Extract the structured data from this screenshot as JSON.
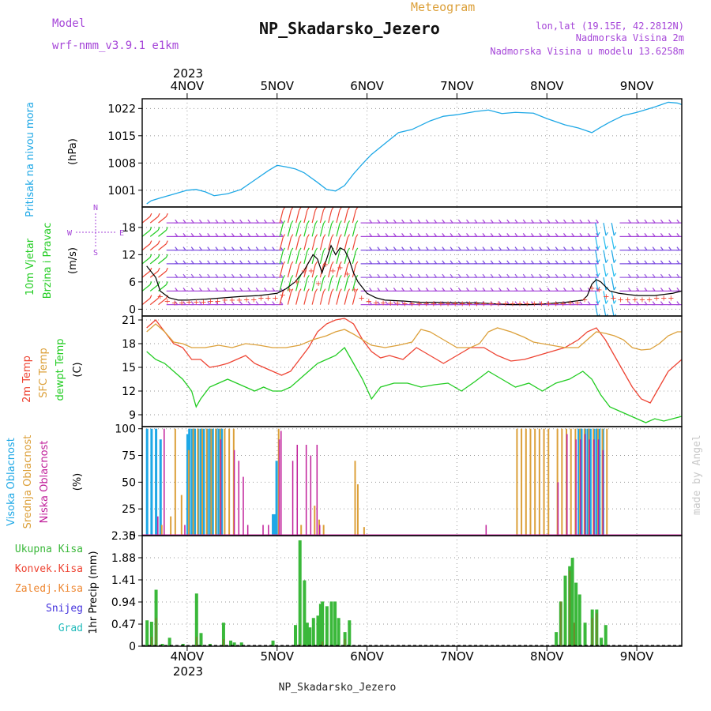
{
  "header": {
    "model_label": "Model",
    "model_name": "wrf-nmm_v3.9.1 e1km",
    "product": "Meteogram",
    "station": "NP_Skadarsko_Jezero",
    "coords": "lon,lat (19.15E, 42.2812N)",
    "altitude": "Nadmorska Visina 2m",
    "model_altitude": "Nadmorska Visina u modelu 13.6258m",
    "year": "2023",
    "footer_station": "NP_Skadarsko_Jezero",
    "watermark": "made by Angel"
  },
  "colors": {
    "pressure": "#1ea8e6",
    "temp2m": "#ee4433",
    "sfc": "#dca03a",
    "dew": "#22cc22",
    "purple": "#a545d8",
    "black": "#000000",
    "high_cloud": "#1ea8e6",
    "mid_cloud": "#dca03a",
    "low_cloud": "#c01f9a",
    "precip_total": "#3ab83a",
    "precip_conv": "#ee4433",
    "precip_frz": "#ee8833",
    "snow": "#4433dd",
    "graupel": "#22bbbb"
  },
  "time_axis": {
    "labels": [
      "4NOV",
      "5NOV",
      "6NOV",
      "7NOV",
      "8NOV",
      "9NOV"
    ],
    "year_label": "2023"
  },
  "chart_data": [
    {
      "type": "line",
      "id": "pressure",
      "ylabel": "Pritisak na nivou mora",
      "unit": "(hPa)",
      "ylim": [
        996.7,
        1024.5
      ],
      "yticks": [
        1001,
        1008,
        1015,
        1022
      ],
      "grid": true,
      "series": [
        {
          "name": "Pritisak na nivou mora",
          "x": [
            3.55,
            3.6,
            3.7,
            3.85,
            4.0,
            4.1,
            4.2,
            4.3,
            4.45,
            4.6,
            4.75,
            4.9,
            5.0,
            5.1,
            5.2,
            5.3,
            5.45,
            5.55,
            5.65,
            5.75,
            5.85,
            5.95,
            6.05,
            6.2,
            6.35,
            6.5,
            6.7,
            6.85,
            7.0,
            7.2,
            7.35,
            7.5,
            7.65,
            7.85,
            8.0,
            8.2,
            8.35,
            8.45,
            8.5,
            8.6,
            8.7,
            8.85,
            9.0,
            9.2,
            9.35,
            9.45,
            9.5
          ],
          "y": [
            997.5,
            998.3,
            999.0,
            1000.0,
            1001.0,
            1001.2,
            1000.6,
            999.6,
            1000.1,
            1001.2,
            1003.6,
            1006.0,
            1007.4,
            1007.0,
            1006.5,
            1005.5,
            1003.0,
            1001.2,
            1000.8,
            1002.2,
            1005.2,
            1007.8,
            1010.2,
            1013.0,
            1015.8,
            1016.6,
            1018.8,
            1020.0,
            1020.4,
            1021.2,
            1021.6,
            1020.7,
            1021.0,
            1020.8,
            1019.4,
            1017.8,
            1017.0,
            1016.2,
            1015.8,
            1017.2,
            1018.5,
            1020.2,
            1021.0,
            1022.4,
            1023.6,
            1023.4,
            1023.0
          ]
        }
      ]
    },
    {
      "type": "line",
      "id": "wind",
      "ylabel": "10m Vjetar Brzina i Pravac",
      "unit": "(m/s)",
      "compass": {
        "n": "N",
        "w": "W",
        "e": "E",
        "s": "S"
      },
      "ylim": [
        -1.5,
        22.5
      ],
      "yticks": [
        0,
        6,
        12,
        18
      ],
      "grid": true,
      "series": [
        {
          "name": "10m Vjetar",
          "x": [
            3.55,
            3.65,
            3.7,
            3.8,
            3.9,
            4.0,
            4.2,
            4.4,
            4.6,
            4.8,
            5.0,
            5.1,
            5.2,
            5.3,
            5.4,
            5.45,
            5.5,
            5.6,
            5.65,
            5.7,
            5.75,
            5.8,
            5.85,
            5.9,
            6.0,
            6.1,
            6.2,
            6.4,
            6.6,
            6.8,
            7.0,
            7.2,
            7.4,
            7.6,
            7.8,
            8.0,
            8.2,
            8.4,
            8.45,
            8.5,
            8.55,
            8.6,
            8.65,
            8.7,
            8.8,
            9.0,
            9.2,
            9.4,
            9.5
          ],
          "y": [
            9.5,
            7.0,
            4.0,
            2.5,
            2.0,
            2.0,
            2.2,
            2.5,
            2.8,
            3.0,
            3.5,
            4.5,
            6.0,
            8.5,
            12.0,
            11.0,
            8.0,
            14.0,
            12.0,
            13.5,
            13.0,
            11.0,
            8.0,
            6.0,
            3.5,
            2.5,
            2.0,
            1.8,
            1.5,
            1.5,
            1.4,
            1.4,
            1.2,
            1.0,
            1.0,
            1.2,
            1.5,
            2.0,
            3.0,
            5.5,
            6.5,
            6.0,
            5.0,
            4.0,
            3.5,
            3.0,
            3.0,
            3.5,
            4.0
          ]
        }
      ],
      "barb_directions": [
        {
          "from": 3.5,
          "to": 3.75,
          "dir": "mixed"
        },
        {
          "from": 3.75,
          "to": 5.0,
          "dir": "E"
        },
        {
          "from": 5.0,
          "to": 5.9,
          "dir": "S"
        },
        {
          "from": 5.9,
          "to": 8.45,
          "dir": "E"
        },
        {
          "from": 8.45,
          "to": 8.75,
          "dir": "N"
        },
        {
          "from": 8.75,
          "to": 9.5,
          "dir": "E"
        }
      ]
    },
    {
      "type": "line",
      "id": "temperature",
      "ylabel": [
        "2m Temp",
        "SFC Temp",
        "dewpt Temp"
      ],
      "unit": "(C)",
      "ylim": [
        7.5,
        21.5
      ],
      "yticks": [
        9,
        12,
        15,
        18,
        21
      ],
      "grid": true,
      "series": [
        {
          "name": "2m Temp",
          "x": [
            3.55,
            3.65,
            3.75,
            3.85,
            3.95,
            4.05,
            4.15,
            4.25,
            4.35,
            4.45,
            4.55,
            4.65,
            4.75,
            4.85,
            4.95,
            5.05,
            5.15,
            5.25,
            5.35,
            5.45,
            5.55,
            5.65,
            5.75,
            5.85,
            5.95,
            6.05,
            6.15,
            6.25,
            6.4,
            6.55,
            6.7,
            6.85,
            7.0,
            7.15,
            7.3,
            7.45,
            7.6,
            7.75,
            7.9,
            8.05,
            8.2,
            8.35,
            8.45,
            8.55,
            8.65,
            8.75,
            8.85,
            8.95,
            9.05,
            9.15,
            9.25,
            9.35,
            9.45,
            9.5
          ],
          "y": [
            20.0,
            21.0,
            19.5,
            18.0,
            17.5,
            16.0,
            16.0,
            15.0,
            15.2,
            15.5,
            16.0,
            16.5,
            15.5,
            15.0,
            14.5,
            14.0,
            14.5,
            16.0,
            17.5,
            19.5,
            20.5,
            21.0,
            21.2,
            20.5,
            18.5,
            17.0,
            16.2,
            16.5,
            16.0,
            17.5,
            16.5,
            15.5,
            16.5,
            17.5,
            17.5,
            16.5,
            15.8,
            16.0,
            16.5,
            17.0,
            17.5,
            18.5,
            19.5,
            20.0,
            18.5,
            16.5,
            14.5,
            12.5,
            11.0,
            10.5,
            12.5,
            14.5,
            15.5,
            16.0
          ]
        },
        {
          "name": "SFC Temp",
          "x": [
            3.55,
            3.65,
            3.75,
            3.85,
            3.95,
            4.05,
            4.2,
            4.35,
            4.5,
            4.65,
            4.8,
            4.95,
            5.1,
            5.25,
            5.4,
            5.55,
            5.65,
            5.75,
            5.85,
            5.95,
            6.05,
            6.2,
            6.35,
            6.5,
            6.6,
            6.7,
            6.85,
            7.0,
            7.15,
            7.25,
            7.35,
            7.45,
            7.6,
            7.75,
            7.85,
            7.95,
            8.05,
            8.2,
            8.35,
            8.45,
            8.55,
            8.65,
            8.75,
            8.85,
            8.95,
            9.05,
            9.15,
            9.25,
            9.35,
            9.45,
            9.5
          ],
          "y": [
            19.5,
            20.5,
            19.5,
            18.2,
            18.0,
            17.5,
            17.5,
            17.8,
            17.5,
            18.0,
            17.8,
            17.5,
            17.5,
            17.8,
            18.5,
            19.0,
            19.5,
            19.8,
            19.2,
            18.5,
            17.8,
            17.5,
            17.8,
            18.2,
            19.8,
            19.5,
            18.5,
            17.5,
            17.5,
            18.0,
            19.5,
            20.0,
            19.5,
            18.8,
            18.2,
            18.0,
            17.8,
            17.5,
            17.5,
            18.5,
            19.5,
            19.3,
            19.0,
            18.5,
            17.5,
            17.2,
            17.3,
            18.0,
            19.0,
            19.5,
            19.5
          ]
        },
        {
          "name": "dewpt Temp",
          "x": [
            3.55,
            3.65,
            3.75,
            3.85,
            3.95,
            4.05,
            4.1,
            4.15,
            4.25,
            4.35,
            4.45,
            4.55,
            4.65,
            4.75,
            4.85,
            4.95,
            5.05,
            5.15,
            5.25,
            5.35,
            5.45,
            5.55,
            5.65,
            5.75,
            5.85,
            5.95,
            6.05,
            6.15,
            6.3,
            6.45,
            6.6,
            6.75,
            6.9,
            7.05,
            7.2,
            7.35,
            7.5,
            7.65,
            7.8,
            7.95,
            8.1,
            8.25,
            8.4,
            8.5,
            8.6,
            8.7,
            8.8,
            8.9,
            9.0,
            9.1,
            9.2,
            9.3,
            9.4,
            9.5
          ],
          "y": [
            17.0,
            16.0,
            15.5,
            14.5,
            13.5,
            12.0,
            10.0,
            11.0,
            12.5,
            13.0,
            13.5,
            13.0,
            12.5,
            12.0,
            12.5,
            12.0,
            12.0,
            12.5,
            13.5,
            14.5,
            15.5,
            16.0,
            16.5,
            17.5,
            15.5,
            13.5,
            11.0,
            12.5,
            13.0,
            13.0,
            12.5,
            12.8,
            13.0,
            12.0,
            13.2,
            14.5,
            13.5,
            12.5,
            13.0,
            12.0,
            13.0,
            13.5,
            14.5,
            13.5,
            11.5,
            10.0,
            9.5,
            9.0,
            8.5,
            8.0,
            8.5,
            8.2,
            8.5,
            8.8
          ]
        }
      ]
    },
    {
      "type": "bar",
      "id": "cloud",
      "ylabel": [
        "Visoka Oblacnost",
        "Srednja Oblacnost",
        "Niska Oblacnost"
      ],
      "unit": "(%)",
      "ylim": [
        0,
        102
      ],
      "yticks": [
        0,
        25,
        50,
        75,
        100
      ],
      "grid": true,
      "series": [
        {
          "name": "Visoka Oblacnost",
          "x": [
            3.55,
            3.6,
            3.65,
            3.7,
            4.0,
            4.02,
            4.05,
            4.08,
            4.12,
            4.15,
            4.18,
            4.22,
            4.25,
            4.28,
            4.32,
            4.35,
            4.38,
            4.95,
            4.97,
            4.99,
            8.35,
            8.38,
            8.42,
            8.45,
            8.48,
            8.52,
            8.55,
            8.58,
            8.62
          ],
          "y": [
            100,
            100,
            100,
            90,
            95,
            100,
            100,
            100,
            100,
            100,
            100,
            100,
            100,
            100,
            100,
            100,
            100,
            20,
            20,
            70,
            100,
            100,
            100,
            100,
            100,
            100,
            100,
            100,
            100
          ]
        },
        {
          "name": "Srednja Oblacnost",
          "x": [
            3.7,
            3.8,
            3.85,
            3.92,
            4.0,
            4.05,
            4.1,
            4.15,
            4.2,
            4.25,
            4.3,
            4.35,
            4.4,
            4.45,
            4.5,
            5.0,
            5.25,
            5.4,
            5.45,
            5.5,
            5.85,
            5.88,
            5.95,
            7.65,
            7.7,
            7.75,
            7.8,
            7.85,
            7.9,
            7.95,
            8.0,
            8.1,
            8.15,
            8.2,
            8.25,
            8.3,
            8.35,
            8.4,
            8.45,
            8.5,
            8.55,
            8.6,
            8.65
          ],
          "y": [
            10,
            18,
            100,
            38,
            80,
            100,
            100,
            100,
            100,
            100,
            100,
            100,
            100,
            100,
            100,
            100,
            10,
            28,
            15,
            10,
            70,
            48,
            8,
            100,
            100,
            100,
            100,
            100,
            100,
            100,
            100,
            100,
            100,
            100,
            100,
            100,
            100,
            100,
            100,
            100,
            100,
            100,
            100
          ]
        },
        {
          "name": "Niska Oblacnost",
          "x": [
            3.65,
            3.72,
            3.95,
            4.35,
            4.5,
            4.55,
            4.6,
            4.65,
            4.82,
            4.88,
            5.0,
            5.02,
            5.15,
            5.2,
            5.3,
            5.35,
            5.42,
            5.45,
            7.3,
            8.1,
            8.2,
            8.3,
            8.35,
            8.4,
            8.45,
            8.5,
            8.55,
            8.6
          ],
          "y": [
            18,
            100,
            10,
            90,
            80,
            70,
            55,
            10,
            10,
            10,
            90,
            98,
            70,
            85,
            85,
            75,
            85,
            10,
            10,
            50,
            95,
            90,
            90,
            95,
            90,
            90,
            90,
            80
          ]
        }
      ]
    },
    {
      "type": "bar",
      "id": "precip",
      "ylabel": "1hr Precip (mm)",
      "legend": [
        "Ukupna Kisa",
        "Konvek.Kisa",
        "Zaledj.Kisa",
        "Snijeg",
        "Grad"
      ],
      "ylim": [
        0,
        2.35
      ],
      "yticks": [
        0,
        0.47,
        0.94,
        1.41,
        1.88,
        2.35
      ],
      "grid": true,
      "series": [
        {
          "name": "Ukupna Kisa",
          "x": [
            3.55,
            3.6,
            3.65,
            3.72,
            3.8,
            3.95,
            4.1,
            4.15,
            4.25,
            4.4,
            4.48,
            4.52,
            4.6,
            4.95,
            5.2,
            5.25,
            5.3,
            5.33,
            5.36,
            5.4,
            5.45,
            5.48,
            5.5,
            5.55,
            5.6,
            5.64,
            5.68,
            5.75,
            5.8,
            8.1,
            8.15,
            8.2,
            8.25,
            8.28,
            8.32,
            8.36,
            8.42,
            8.5,
            8.55,
            8.6,
            8.65
          ],
          "y": [
            0.55,
            0.52,
            1.2,
            0.05,
            0.18,
            0.05,
            1.12,
            0.28,
            0.05,
            0.5,
            0.12,
            0.08,
            0.08,
            0.12,
            0.45,
            2.25,
            1.4,
            0.5,
            0.4,
            0.6,
            0.65,
            0.9,
            0.95,
            0.85,
            0.95,
            0.95,
            0.6,
            0.3,
            0.55,
            0.3,
            0.95,
            1.5,
            1.7,
            1.88,
            1.35,
            1.1,
            0.5,
            0.78,
            0.78,
            0.18,
            0.45
          ]
        },
        {
          "name": "Konvek.Kisa",
          "x": [
            3.6,
            3.65,
            4.1,
            4.4,
            5.25,
            5.5,
            5.75,
            8.15,
            8.25,
            8.3,
            8.5,
            8.55
          ],
          "y": [
            0.2,
            0.6,
            0.2,
            0.15,
            0.05,
            0.1,
            0.15,
            0.95,
            1.6,
            0.5,
            0.6,
            0.7
          ]
        },
        {
          "name": "Zaledj.Kisa",
          "x": [],
          "y": []
        },
        {
          "name": "Snijeg",
          "x": [],
          "y": []
        },
        {
          "name": "Grad",
          "x": [],
          "y": []
        }
      ]
    }
  ]
}
